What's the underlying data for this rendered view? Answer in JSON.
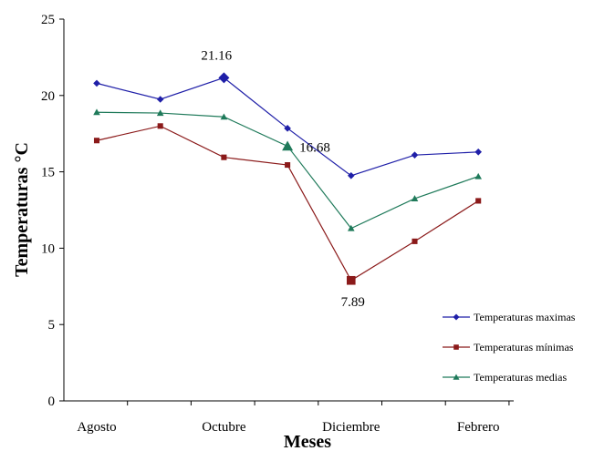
{
  "chart_data": {
    "type": "line",
    "xlabel": "Meses",
    "ylabel": "Temperaturas °C",
    "ylim": [
      0,
      25
    ],
    "y_ticks": [
      0,
      5,
      10,
      15,
      20,
      25
    ],
    "categories": [
      "Agosto",
      "",
      "Octubre",
      "",
      "Diciembre",
      "",
      "Febrero"
    ],
    "x_tick_labels": [
      "Agosto",
      "Octubre",
      "Diciembre",
      "Febrero"
    ],
    "grid": false,
    "legend_position": "right",
    "series": [
      {
        "name": "Temperaturas maximas",
        "color": "#1f1fa8",
        "marker": "diamond",
        "values": [
          20.8,
          19.75,
          21.16,
          17.85,
          14.75,
          16.1,
          16.3
        ]
      },
      {
        "name": "Temperaturas mínimas",
        "color": "#8b1a1a",
        "marker": "square",
        "values": [
          17.05,
          18.0,
          15.95,
          15.45,
          7.89,
          10.45,
          13.1
        ]
      },
      {
        "name": "Temperaturas medias",
        "color": "#1f7a5a",
        "marker": "triangle",
        "values": [
          18.9,
          18.85,
          18.6,
          16.68,
          11.3,
          13.25,
          14.7
        ]
      }
    ],
    "annotations": [
      {
        "series": 0,
        "index": 2,
        "text": "21.16"
      },
      {
        "series": 2,
        "index": 3,
        "text": "16.68"
      },
      {
        "series": 1,
        "index": 4,
        "text": "7.89"
      }
    ]
  }
}
